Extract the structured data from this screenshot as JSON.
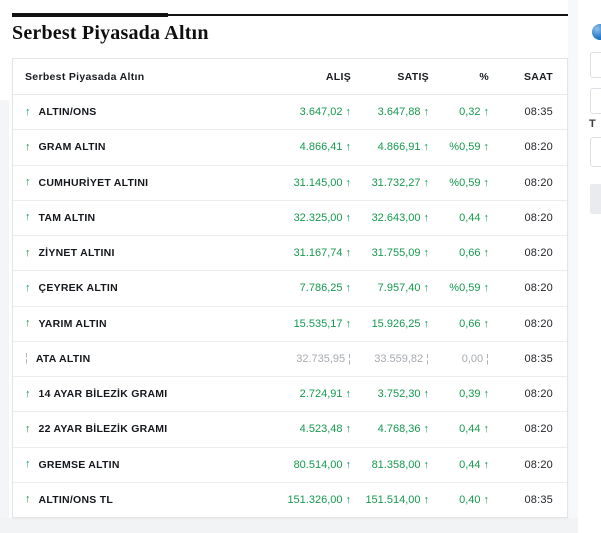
{
  "page": {
    "title": "Serbest Piyasada Altın"
  },
  "table": {
    "title": "Serbest Piyasada Altın",
    "columns": [
      "ALIŞ",
      "SATIŞ",
      "%",
      "SAAT"
    ],
    "rows": [
      {
        "name": "ALTIN/ONS",
        "alis": "3.647,02",
        "satis": "3.647,88",
        "pct": "0,32",
        "saat": "08:35",
        "dir": "up"
      },
      {
        "name": "GRAM ALTIN",
        "alis": "4.866,41",
        "satis": "4.866,91",
        "pct": "%0,59",
        "saat": "08:20",
        "dir": "up"
      },
      {
        "name": "CUMHURİYET ALTINI",
        "alis": "31.145,00",
        "satis": "31.732,27",
        "pct": "%0,59",
        "saat": "08:20",
        "dir": "up"
      },
      {
        "name": "TAM ALTIN",
        "alis": "32.325,00",
        "satis": "32.643,00",
        "pct": "0,44",
        "saat": "08:20",
        "dir": "up"
      },
      {
        "name": "ZİYNET ALTINI",
        "alis": "31.167,74",
        "satis": "31.755,09",
        "pct": "0,66",
        "saat": "08:20",
        "dir": "up"
      },
      {
        "name": "ÇEYREK ALTIN",
        "alis": "7.786,25",
        "satis": "7.957,40",
        "pct": "%0,59",
        "saat": "08:20",
        "dir": "up"
      },
      {
        "name": "YARIM ALTIN",
        "alis": "15.535,17",
        "satis": "15.926,25",
        "pct": "0,66",
        "saat": "08:20",
        "dir": "up"
      },
      {
        "name": "ATA ALTIN",
        "alis": "32.735,95",
        "satis": "33.559,82",
        "pct": "0,00",
        "saat": "08:35",
        "dir": "flat"
      },
      {
        "name": "14 AYAR BİLEZİK GRAMI",
        "alis": "2.724,91",
        "satis": "3.752,30",
        "pct": "0,39",
        "saat": "08:20",
        "dir": "up"
      },
      {
        "name": "22 AYAR BİLEZİK GRAMI",
        "alis": "4.523,48",
        "satis": "4.768,36",
        "pct": "0,44",
        "saat": "08:20",
        "dir": "up"
      },
      {
        "name": "GREMSE ALTIN",
        "alis": "80.514,00",
        "satis": "81.358,00",
        "pct": "0,44",
        "saat": "08:20",
        "dir": "up"
      },
      {
        "name": "ALTIN/ONS TL",
        "alis": "151.326,00",
        "satis": "151.514,00",
        "pct": "0,40",
        "saat": "08:35",
        "dir": "up"
      }
    ]
  },
  "icons": {
    "up": "↑",
    "flat": "¦"
  },
  "colors": {
    "up_green": "#169a4e",
    "flat_gray": "#a6abb1",
    "accent_black": "#121212"
  },
  "sidebar": {
    "t_label": "T"
  }
}
